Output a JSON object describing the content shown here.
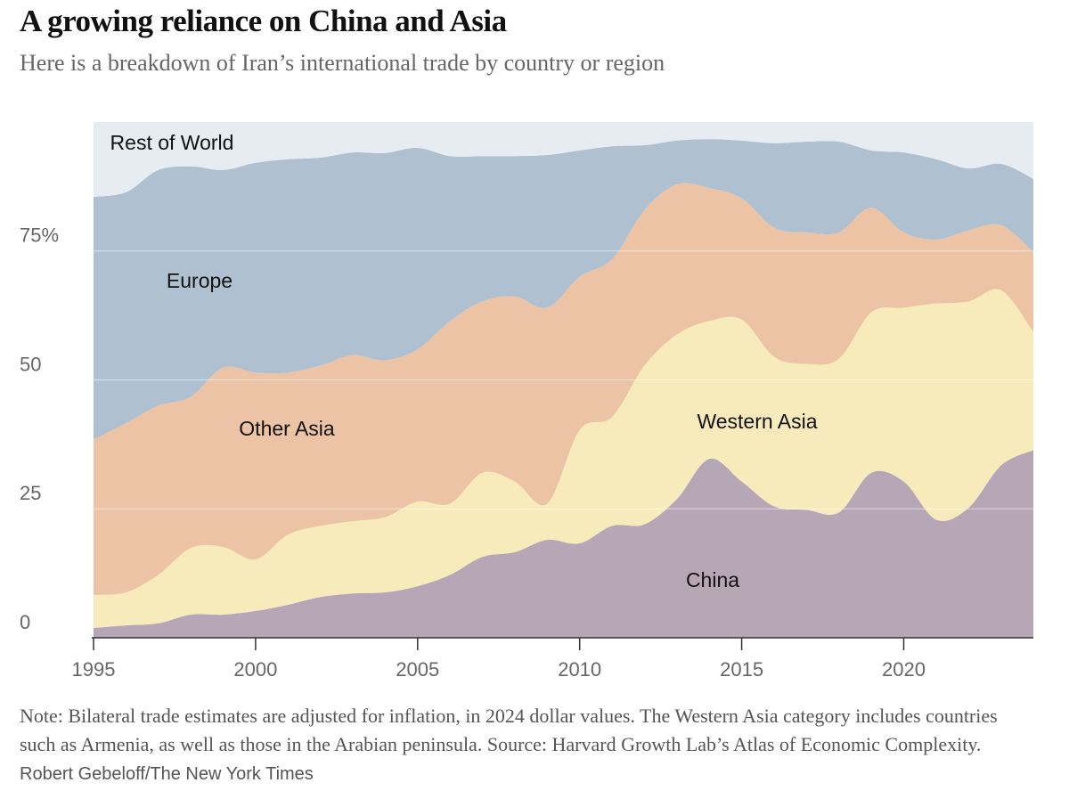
{
  "chart_data": {
    "type": "stacked-area",
    "title": "A growing reliance on China and Asia",
    "subtitle": "Here is a breakdown of Iran’s international trade by country or region",
    "note": "Note: Bilateral trade estimates are adjusted for inflation, in 2024 dollar values. The Western Asia category includes countries such as Armenia, as well as those in the Arabian peninsula.",
    "source": "Source: Harvard Growth Lab’s Atlas of Economic Complexity.",
    "credit": "Robert Gebeloff/The New York Times",
    "x": [
      1995,
      1996,
      1997,
      1998,
      1999,
      2000,
      2001,
      2002,
      2003,
      2004,
      2005,
      2006,
      2007,
      2008,
      2009,
      2010,
      2011,
      2012,
      2013,
      2014,
      2015,
      2016,
      2017,
      2018,
      2019,
      2020,
      2021,
      2022,
      2023,
      2024
    ],
    "xlim": [
      1995,
      2024
    ],
    "xticks": [
      1995,
      2000,
      2005,
      2010,
      2015,
      2020
    ],
    "ylim": [
      0,
      100
    ],
    "yticks": [
      0,
      25,
      50,
      {
        "value": 75,
        "label": "75%"
      }
    ],
    "grid": true,
    "series": [
      {
        "name": "China",
        "color": "#b7a6b6",
        "values": [
          1.9,
          2.4,
          2.8,
          4.5,
          4.5,
          5.2,
          6.4,
          7.9,
          8.6,
          8.8,
          10,
          12.2,
          15.7,
          16.6,
          19,
          18.3,
          21.7,
          22,
          26.9,
          34.7,
          30.3,
          25.5,
          24.8,
          24.3,
          32,
          30.3,
          22.9,
          25.2,
          33.4,
          36.4
        ]
      },
      {
        "name": "Western Asia",
        "color": "#f7ebbb",
        "values": [
          6.4,
          6.4,
          9.4,
          12.9,
          13.1,
          10,
          13.6,
          13.8,
          14,
          14.6,
          16.4,
          13.8,
          16.3,
          13.7,
          7,
          22,
          21.1,
          30.8,
          31.9,
          26.7,
          31.4,
          29,
          28.3,
          29.8,
          31.1,
          33.7,
          41.9,
          40,
          34,
          22.9
        ]
      },
      {
        "name": "Other Asia",
        "color": "#ecc3a5",
        "values": [
          30.1,
          32.8,
          32.8,
          29.3,
          34.8,
          36.2,
          31.4,
          31.1,
          32.2,
          30.4,
          29.5,
          35.4,
          33.2,
          35.9,
          38,
          29.7,
          30.6,
          30.1,
          29.1,
          25.8,
          23.5,
          25,
          25.5,
          24.5,
          20.3,
          14.6,
          12.4,
          13.8,
          12.6,
          15.5
        ]
      },
      {
        "name": "Europe",
        "color": "#afc0d0",
        "values": [
          47.1,
          44.8,
          45.7,
          44.7,
          38.3,
          40.7,
          41.4,
          40.3,
          39.3,
          40.2,
          39.1,
          32,
          28.2,
          27.2,
          29.6,
          24.5,
          21.9,
          12.6,
          8.5,
          9.5,
          11.2,
          16.4,
          17.6,
          17.6,
          11.1,
          15.5,
          15.6,
          12,
          11.9,
          14.2
        ]
      },
      {
        "name": "Rest of World",
        "color": "#e6ecef",
        "values": [
          14.5,
          13.6,
          9.3,
          8.6,
          9.3,
          7.9,
          7.2,
          6.9,
          5.9,
          6,
          5,
          6.6,
          6.6,
          6.6,
          6.4,
          5.5,
          4.7,
          4.5,
          3.6,
          3.3,
          3.6,
          4.1,
          3.8,
          3.8,
          5.5,
          5.9,
          7.2,
          9,
          8.1,
          11
        ]
      }
    ]
  }
}
